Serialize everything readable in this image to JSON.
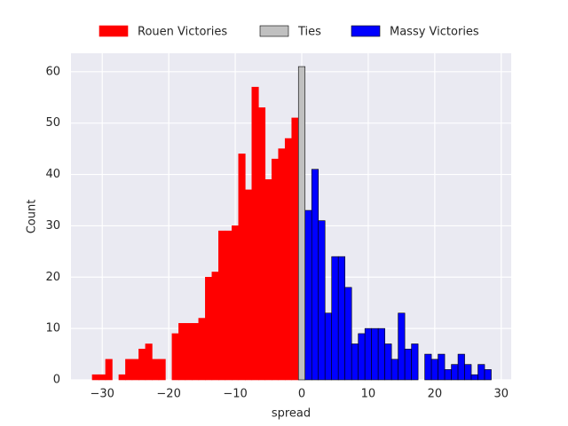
{
  "chart_data": {
    "type": "histogram",
    "xlabel": "spread",
    "ylabel": "Count",
    "xlim": [
      -34.7,
      31.5
    ],
    "ylim": [
      0,
      63.6
    ],
    "xticks": [
      {
        "value": -30,
        "label": "−30"
      },
      {
        "value": -20,
        "label": "−20"
      },
      {
        "value": -10,
        "label": "−10"
      },
      0,
      10,
      20,
      30
    ],
    "yticks": [
      0,
      10,
      20,
      30,
      40,
      50,
      60
    ],
    "grid": true,
    "legend": "top",
    "series": [
      {
        "name": "Rouen Victories",
        "color": "#ff0000",
        "edgecolor": "#ff0000",
        "bins": [
          -31.5,
          -30.5,
          -29.5,
          -28.5,
          -27.5,
          -26.5,
          -25.5,
          -24.5,
          -23.5,
          -22.5,
          -21.5,
          -20.5,
          -19.5,
          -18.5,
          -17.5,
          -16.5,
          -15.5,
          -14.5,
          -13.5,
          -12.5,
          -11.5,
          -10.5,
          -9.5,
          -8.5,
          -7.5,
          -6.5,
          -5.5,
          -4.5,
          -3.5,
          -2.5,
          -1.5,
          -0.5
        ],
        "values": [
          1,
          1,
          4,
          0,
          1,
          4,
          4,
          6,
          7,
          4,
          4,
          0,
          9,
          11,
          11,
          11,
          12,
          20,
          21,
          29,
          29,
          30,
          44,
          37,
          57,
          53,
          39,
          43,
          45,
          47,
          51
        ]
      },
      {
        "name": "Ties",
        "color": "#c0c0c0",
        "edgecolor": "#000000",
        "bins": [
          -0.5,
          0.5
        ],
        "values": [
          61
        ]
      },
      {
        "name": "Massy Victories",
        "color": "#0000ff",
        "edgecolor": "#000000",
        "bins": [
          0.5,
          1.5,
          2.5,
          3.5,
          4.5,
          5.5,
          6.5,
          7.5,
          8.5,
          9.5,
          10.5,
          11.5,
          12.5,
          13.5,
          14.5,
          15.5,
          16.5,
          17.5,
          18.5,
          19.5,
          20.5,
          21.5,
          22.5,
          23.5,
          24.5,
          25.5,
          26.5,
          27.5,
          28.5
        ],
        "values": [
          33,
          41,
          31,
          13,
          24,
          24,
          18,
          7,
          9,
          10,
          10,
          10,
          7,
          4,
          13,
          6,
          7,
          0,
          5,
          4,
          5,
          2,
          3,
          5,
          3,
          1,
          3,
          2
        ]
      }
    ]
  }
}
